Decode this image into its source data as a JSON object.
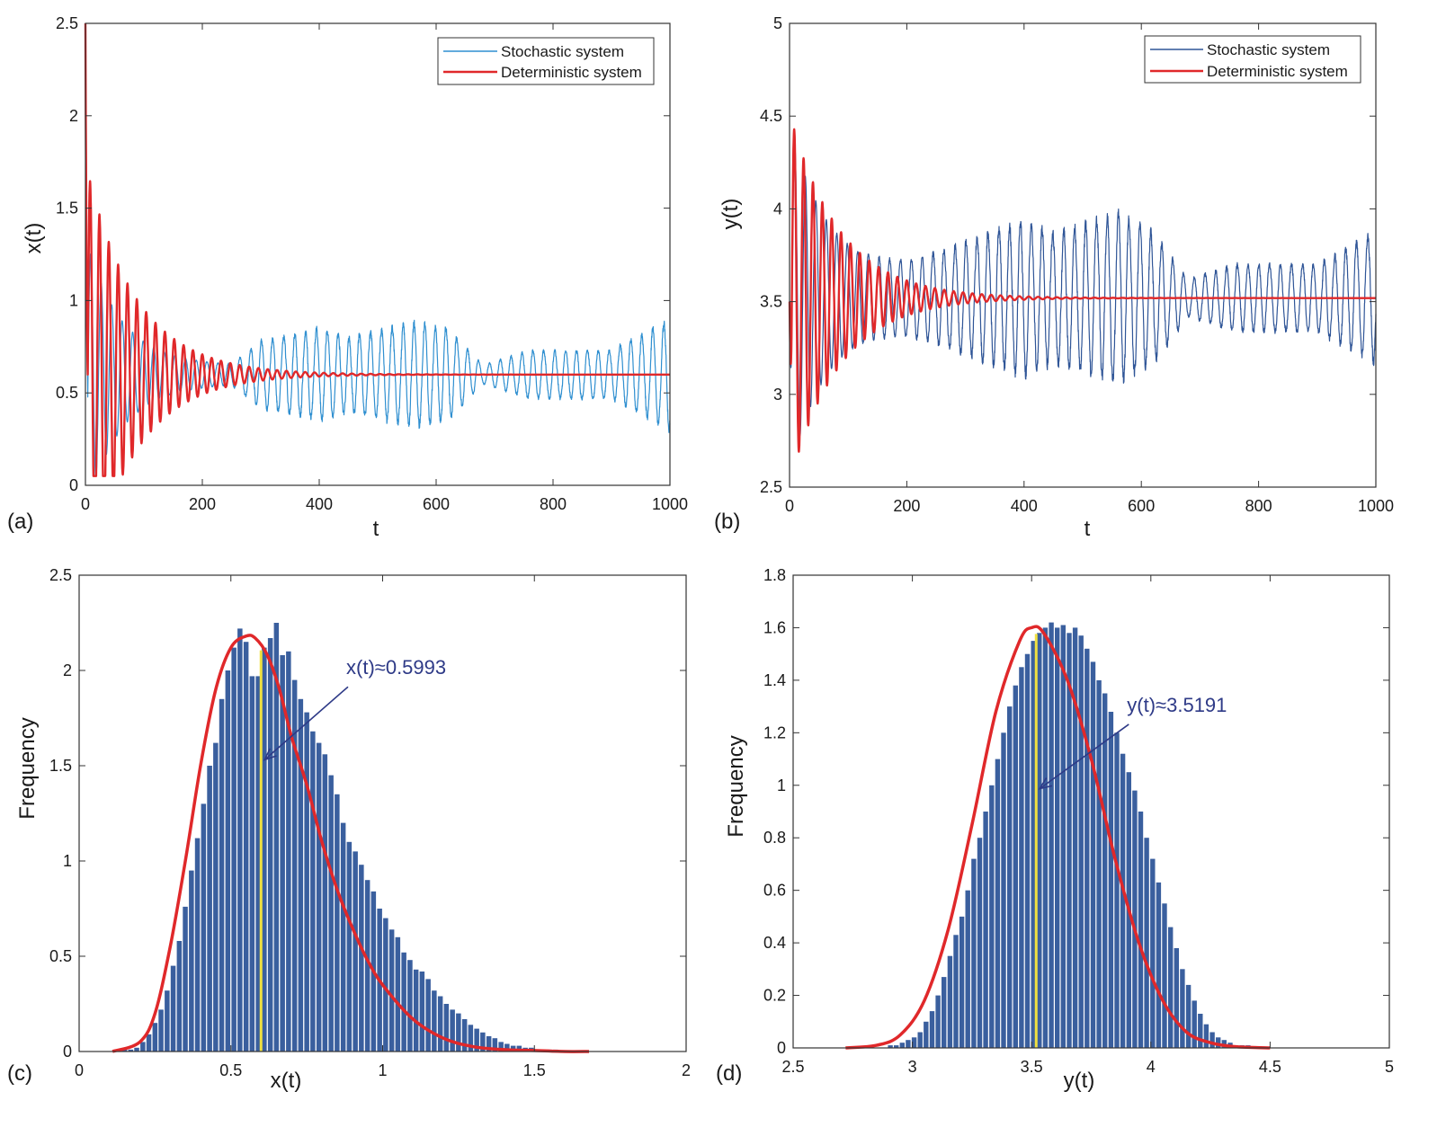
{
  "chart_data": [
    {
      "panel": "(a)",
      "type": "line",
      "xlabel": "t",
      "ylabel": "x(t)",
      "xlim": [
        0,
        1000
      ],
      "ylim": [
        0,
        2.5
      ],
      "xticks": [
        0,
        200,
        400,
        600,
        800,
        1000
      ],
      "xtick_labels": [
        "0",
        "200",
        "400",
        "600",
        "800",
        "1000"
      ],
      "yticks": [
        0,
        0.5,
        1,
        1.5,
        2,
        2.5
      ],
      "ytick_labels": [
        "0",
        "0.5",
        "1",
        "1.5",
        "2",
        "2.5"
      ],
      "legend_position": "top-right",
      "colors": {
        "stochastic": "#2f8fd0",
        "deterministic": "#e0282a"
      },
      "series": [
        {
          "name": "Stochastic system",
          "kind": "stochastic",
          "start": 2.5,
          "end": 0.5993,
          "amp0": 0.75,
          "decay": 65,
          "period": 18,
          "noise_t": [
            0,
            250,
            300,
            400,
            450,
            560,
            620,
            680,
            760,
            900,
            1000
          ],
          "noise_a": [
            0.0,
            0.05,
            0.18,
            0.25,
            0.2,
            0.28,
            0.25,
            0.05,
            0.13,
            0.13,
            0.3
          ]
        },
        {
          "name": "Deterministic system",
          "kind": "deterministic",
          "start": 2.5,
          "end": 0.5993,
          "amp0": 1.15,
          "decay": 85,
          "period": 16
        }
      ]
    },
    {
      "panel": "(b)",
      "type": "line",
      "xlabel": "t",
      "ylabel": "y(t)",
      "xlim": [
        0,
        1000
      ],
      "ylim": [
        2.5,
        5
      ],
      "xticks": [
        0,
        200,
        400,
        600,
        800,
        1000
      ],
      "xtick_labels": [
        "0",
        "200",
        "400",
        "600",
        "800",
        "1000"
      ],
      "yticks": [
        2.5,
        3,
        3.5,
        4,
        4.5,
        5
      ],
      "ytick_labels": [
        "2.5",
        "3",
        "3.5",
        "4",
        "4.5",
        "5"
      ],
      "legend_position": "top-right",
      "colors": {
        "stochastic": "#2f5597",
        "deterministic": "#e0282a"
      },
      "series": [
        {
          "name": "Stochastic system",
          "kind": "stochastic",
          "start": 3.5,
          "end": 3.5191,
          "amp0": 0.95,
          "decay": 70,
          "period": 18,
          "noise_t": [
            0,
            200,
            300,
            400,
            450,
            560,
            620,
            680,
            760,
            900,
            1000
          ],
          "noise_a": [
            0.0,
            0.15,
            0.3,
            0.42,
            0.35,
            0.45,
            0.35,
            0.1,
            0.18,
            0.18,
            0.35
          ]
        },
        {
          "name": "Deterministic system",
          "kind": "deterministic",
          "start": 3.5,
          "end": 3.5191,
          "amp0": 1.0,
          "decay": 85,
          "period": 16
        }
      ]
    },
    {
      "panel": "(c)",
      "type": "bar",
      "xlabel": "x(t)",
      "ylabel": "Frequency",
      "xlim": [
        0,
        2
      ],
      "ylim": [
        0,
        2.5
      ],
      "xticks": [
        0,
        0.5,
        1,
        1.5,
        2
      ],
      "xtick_labels": [
        "0",
        "0.5",
        "1",
        "1.5",
        "2"
      ],
      "yticks": [
        0,
        0.5,
        1,
        1.5,
        2,
        2.5
      ],
      "ytick_labels": [
        "0",
        "0.5",
        "1",
        "1.5",
        "2",
        "2.5"
      ],
      "bar_color": "#3a5f9e",
      "fit_color": "#e0282a",
      "marker_color": "#f0e040",
      "bin_start": 0.1,
      "bin_width": 0.02,
      "values": [
        0.0,
        0.0,
        0.01,
        0.01,
        0.02,
        0.05,
        0.09,
        0.15,
        0.22,
        0.32,
        0.45,
        0.58,
        0.76,
        0.95,
        1.12,
        1.3,
        1.5,
        1.62,
        1.85,
        2.0,
        2.12,
        2.22,
        2.15,
        1.97,
        1.97,
        2.12,
        2.17,
        2.25,
        2.08,
        2.1,
        1.95,
        1.85,
        1.78,
        1.68,
        1.62,
        1.56,
        1.45,
        1.35,
        1.2,
        1.1,
        1.05,
        0.98,
        0.9,
        0.84,
        0.75,
        0.7,
        0.64,
        0.6,
        0.52,
        0.48,
        0.43,
        0.42,
        0.38,
        0.32,
        0.29,
        0.25,
        0.22,
        0.2,
        0.17,
        0.14,
        0.12,
        0.1,
        0.08,
        0.07,
        0.05,
        0.04,
        0.03,
        0.03,
        0.02,
        0.02,
        0.01,
        0.01,
        0.01,
        0.01,
        0.0
      ],
      "fit": {
        "x": [
          0.11,
          0.2,
          0.25,
          0.3,
          0.35,
          0.4,
          0.45,
          0.5,
          0.55,
          0.58,
          0.62,
          0.66,
          0.7,
          0.75,
          0.8,
          0.85,
          0.9,
          0.95,
          1.0,
          1.1,
          1.2,
          1.3,
          1.4,
          1.5,
          1.6,
          1.68
        ],
        "y": [
          0.0,
          0.05,
          0.2,
          0.55,
          1.0,
          1.5,
          1.9,
          2.12,
          2.18,
          2.17,
          2.08,
          1.9,
          1.65,
          1.4,
          1.1,
          0.85,
          0.65,
          0.48,
          0.35,
          0.17,
          0.07,
          0.025,
          0.01,
          0.005,
          0.0,
          0.0
        ]
      },
      "mean_marker": 0.5993,
      "annotation": {
        "text": "x(t)≈0.5993",
        "x": 0.88,
        "y": 1.98
      }
    },
    {
      "panel": "(d)",
      "type": "bar",
      "xlabel": "y(t)",
      "ylabel": "Frequency",
      "xlim": [
        2.5,
        5
      ],
      "ylim": [
        0,
        1.8
      ],
      "xticks": [
        2.5,
        3,
        3.5,
        4,
        4.5,
        5
      ],
      "xtick_labels": [
        "2.5",
        "3",
        "3.5",
        "4",
        "4.5",
        "5"
      ],
      "yticks": [
        0,
        0.2,
        0.4,
        0.6,
        0.8,
        1,
        1.2,
        1.4,
        1.6,
        1.8
      ],
      "ytick_labels": [
        "0",
        "0.2",
        "0.4",
        "0.6",
        "0.8",
        "1",
        "1.2",
        "1.4",
        "1.6",
        "1.8"
      ],
      "bar_color": "#3a5f9e",
      "fit_color": "#e0282a",
      "marker_color": "#f0e040",
      "bin_start": 2.72,
      "bin_width": 0.025,
      "values": [
        0.0,
        0.0,
        0.0,
        0.0,
        0.0,
        0.0,
        0.0,
        0.01,
        0.01,
        0.02,
        0.03,
        0.04,
        0.06,
        0.1,
        0.14,
        0.2,
        0.27,
        0.35,
        0.43,
        0.5,
        0.6,
        0.72,
        0.8,
        0.9,
        1.0,
        1.1,
        1.2,
        1.3,
        1.38,
        1.45,
        1.5,
        1.55,
        1.58,
        1.6,
        1.62,
        1.6,
        1.61,
        1.58,
        1.6,
        1.57,
        1.52,
        1.47,
        1.4,
        1.35,
        1.28,
        1.2,
        1.12,
        1.05,
        0.98,
        0.9,
        0.8,
        0.72,
        0.63,
        0.55,
        0.46,
        0.38,
        0.3,
        0.24,
        0.18,
        0.13,
        0.09,
        0.06,
        0.04,
        0.03,
        0.02,
        0.01,
        0.01,
        0.01,
        0.0,
        0.0,
        0.0
      ],
      "fit": {
        "x": [
          2.72,
          2.85,
          2.95,
          3.05,
          3.15,
          3.25,
          3.35,
          3.45,
          3.5,
          3.55,
          3.65,
          3.75,
          3.85,
          3.95,
          4.05,
          4.15,
          4.25,
          4.35,
          4.5
        ],
        "y": [
          0.0,
          0.01,
          0.05,
          0.18,
          0.45,
          0.85,
          1.28,
          1.55,
          1.6,
          1.58,
          1.4,
          1.1,
          0.72,
          0.4,
          0.18,
          0.06,
          0.02,
          0.005,
          0.0
        ]
      },
      "mean_marker": 3.5191,
      "annotation": {
        "text": "y(t)≈3.5191",
        "x": 3.9,
        "y": 1.28
      }
    }
  ]
}
